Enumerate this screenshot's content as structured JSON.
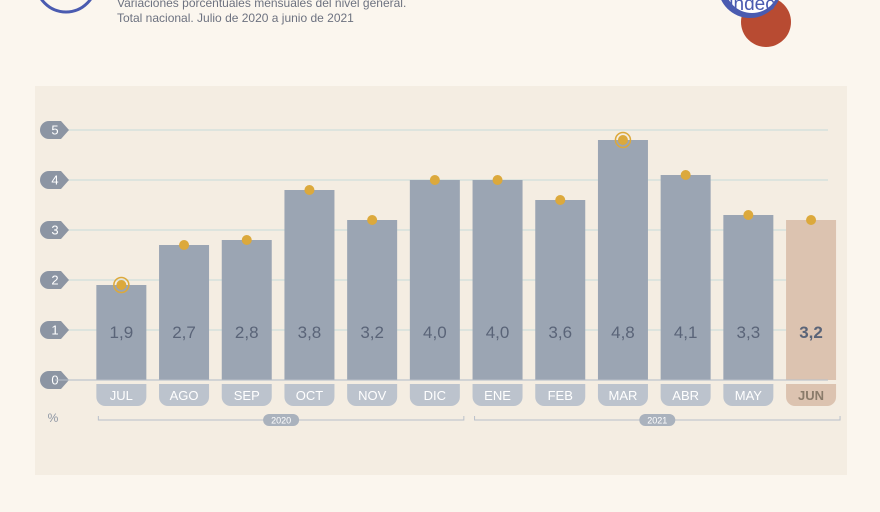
{
  "header": {
    "subtitle_line1": "Variaciones porcentuales mensuales del nivel general.",
    "subtitle_line2": "Total nacional. Julio de 2020 a junio de 2021",
    "logo_text": "indec"
  },
  "colors": {
    "bar": "#9ba5b3",
    "bar_highlight": "#dcc3b0",
    "marker": "#dca93c",
    "label": "#5a6478",
    "tab_text": "#ffffff",
    "tab_highlight_text": "#8a7b6a",
    "grid": "#cfe0dc",
    "axis_badge": "#8c95a3",
    "background": "#fbf6ee",
    "panel": "#f4ede2",
    "logo_blue": "#4a5bb0",
    "logo_orange": "#e6a33a",
    "logo_red": "#b84b32"
  },
  "chart_data": {
    "type": "bar",
    "categories": [
      "JUL",
      "AGO",
      "SEP",
      "OCT",
      "NOV",
      "DIC",
      "ENE",
      "FEB",
      "MAR",
      "ABR",
      "MAY",
      "JUN"
    ],
    "values": [
      1.9,
      2.7,
      2.8,
      3.8,
      3.2,
      4.0,
      4.0,
      3.6,
      4.8,
      4.1,
      3.3,
      3.2
    ],
    "value_labels": [
      "1,9",
      "2,7",
      "2,8",
      "3,8",
      "3,2",
      "4,0",
      "4,0",
      "3,6",
      "4,8",
      "4,1",
      "3,3",
      "3,2"
    ],
    "yticks": [
      "0",
      "1",
      "2",
      "3",
      "4",
      "5"
    ],
    "ylim": [
      0,
      5
    ],
    "y_unit": "%",
    "highlight_index": 11,
    "ring_markers": [
      0,
      8
    ],
    "years": [
      {
        "label": "2020",
        "from": 0,
        "to": 5
      },
      {
        "label": "2021",
        "from": 6,
        "to": 11
      }
    ],
    "grid": true
  }
}
